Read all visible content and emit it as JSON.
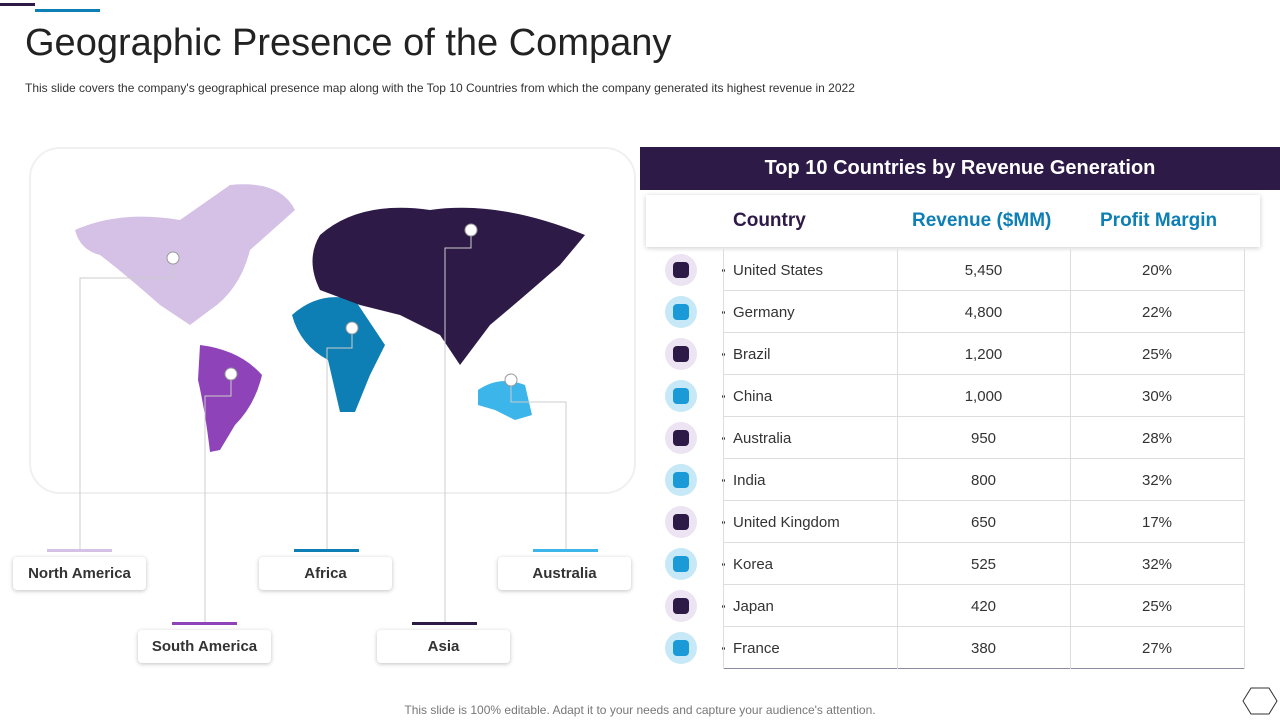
{
  "header": {
    "title": "Geographic Presence of the Company",
    "subtitle": "This slide covers the company's geographical presence map along with the Top 10 Countries from which the company generated its highest revenue  in 2022"
  },
  "regions": [
    "North America",
    "South America",
    "Africa",
    "Asia",
    "Australia"
  ],
  "table": {
    "title": "Top 10 Countries by Revenue Generation",
    "columns": [
      "Country",
      "Revenue ($MM)",
      "Profit Margin"
    ],
    "rows": [
      [
        "United States",
        "5,450",
        "20%"
      ],
      [
        "Germany",
        "4,800",
        "22%"
      ],
      [
        "Brazil",
        "1,200",
        "25%"
      ],
      [
        "China",
        "1,000",
        "30%"
      ],
      [
        "Australia",
        "950",
        "28%"
      ],
      [
        "India",
        "800",
        "32%"
      ],
      [
        "United Kingdom",
        "650",
        "17%"
      ],
      [
        "Korea",
        "525",
        "32%"
      ],
      [
        "Japan",
        "420",
        "25%"
      ],
      [
        "France",
        "380",
        "27%"
      ]
    ]
  },
  "footer": "This slide is 100% editable. Adapt it to your needs and capture your audience's attention."
}
